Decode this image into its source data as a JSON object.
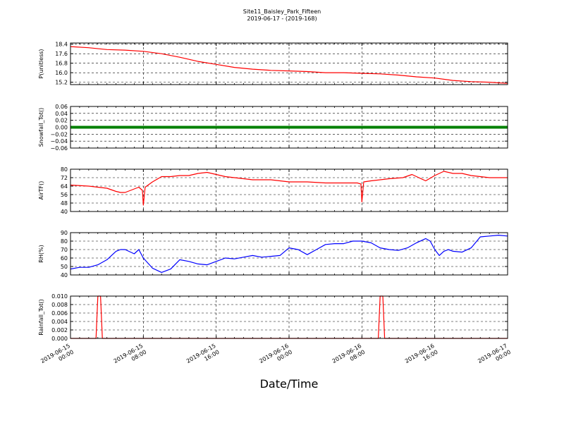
{
  "figure": {
    "title_line1": "Site11_Baisley_Park_Fifteen",
    "title_line2": "2019-06-17 - (2019-168)",
    "xlabel": "Date/Time"
  },
  "chart_data": [
    {
      "type": "line",
      "ylabel": "P(unitless)",
      "ylim": [
        15.0,
        18.5
      ],
      "yticks": [
        "15.2",
        "16.0",
        "16.8",
        "17.6",
        "18.4"
      ],
      "ytick_values": [
        15.2,
        16.0,
        16.8,
        17.6,
        18.4
      ],
      "color": "#ff0000",
      "grid": true,
      "x_hours": [
        0,
        2,
        4,
        6,
        8,
        10,
        12,
        14,
        16,
        18,
        20,
        22,
        24,
        26,
        28,
        30,
        32,
        34,
        36,
        38,
        40,
        42,
        44,
        46,
        48
      ],
      "values": [
        18.2,
        18.1,
        17.95,
        17.9,
        17.8,
        17.6,
        17.3,
        16.95,
        16.7,
        16.45,
        16.3,
        16.2,
        16.15,
        16.1,
        16.0,
        16.0,
        15.95,
        15.9,
        15.8,
        15.65,
        15.55,
        15.35,
        15.25,
        15.2,
        15.1
      ]
    },
    {
      "type": "line",
      "ylabel": "Snowfall_Tot()",
      "ylim": [
        -0.06,
        0.06
      ],
      "yticks": [
        "−0.06",
        "−0.04",
        "−0.02",
        "0.00",
        "0.02",
        "0.04",
        "0.06"
      ],
      "ytick_values": [
        -0.06,
        -0.04,
        -0.02,
        0.0,
        0.02,
        0.04,
        0.06
      ],
      "color": "#008000",
      "grid": true,
      "x_hours": [
        0,
        48
      ],
      "values": [
        0.0,
        0.0
      ]
    },
    {
      "type": "line",
      "ylabel": "AirTF()",
      "ylim": [
        40,
        80
      ],
      "yticks": [
        "40",
        "48",
        "56",
        "64",
        "72",
        "80"
      ],
      "ytick_values": [
        40,
        48,
        56,
        64,
        72,
        80
      ],
      "color": "#ff0000",
      "grid": true,
      "x_hours": [
        0,
        2,
        4,
        5,
        5.5,
        6,
        7.5,
        7.9,
        8.0,
        8.2,
        9,
        10,
        11,
        12,
        13,
        14,
        15,
        16,
        17,
        18,
        20,
        22,
        24,
        26,
        28,
        30,
        31.5,
        31.9,
        32.0,
        32.2,
        33,
        35,
        36.5,
        37.5,
        38,
        39,
        40,
        41,
        42,
        43,
        44,
        46,
        48
      ],
      "values": [
        65,
        64,
        62,
        59,
        58,
        58,
        63,
        60,
        46,
        63,
        68,
        73,
        73,
        74,
        74,
        76,
        77,
        75,
        73,
        72,
        70,
        70,
        68,
        68,
        67,
        67,
        67,
        66,
        49,
        68,
        69,
        71,
        72,
        75,
        73,
        69,
        74,
        78,
        76,
        76,
        74,
        72,
        72
      ]
    },
    {
      "type": "line",
      "ylabel": "RH(%)",
      "ylim": [
        40,
        90
      ],
      "yticks": [
        "40",
        "50",
        "60",
        "70",
        "80",
        "90"
      ],
      "ytick_values": [
        40,
        50,
        60,
        70,
        80,
        90
      ],
      "color": "#0000ff",
      "grid": true,
      "x_hours": [
        0,
        1,
        2,
        3,
        4,
        5,
        5.5,
        6,
        7,
        7.5,
        8,
        9,
        10,
        11,
        12,
        13,
        14,
        15,
        16,
        17,
        18,
        19,
        20,
        21,
        22,
        23,
        24,
        25,
        26,
        27,
        28,
        29,
        30,
        31,
        32,
        33,
        34,
        35,
        36,
        37,
        38,
        39,
        39.5,
        40,
        40.5,
        41,
        41.5,
        42,
        43,
        44,
        45,
        46,
        47,
        48
      ],
      "values": [
        47,
        49,
        49,
        52,
        58,
        68,
        70,
        70,
        65,
        70,
        60,
        48,
        43,
        47,
        58,
        56,
        53,
        52,
        56,
        60,
        59,
        61,
        63,
        61,
        62,
        63,
        72,
        70,
        64,
        70,
        76,
        77,
        77,
        80,
        80,
        78,
        72,
        70,
        69,
        72,
        78,
        83,
        80,
        70,
        63,
        68,
        70,
        68,
        67,
        72,
        85,
        86,
        87,
        86
      ]
    },
    {
      "type": "line",
      "ylabel": "Rainfall_Tot()",
      "ylim": [
        0,
        0.01
      ],
      "yticks": [
        "0.000",
        "0.002",
        "0.004",
        "0.006",
        "0.008",
        "0.010"
      ],
      "ytick_values": [
        0,
        0.002,
        0.004,
        0.006,
        0.008,
        0.01
      ],
      "color": "#ff0000",
      "grid": true,
      "x_hours": [
        0,
        2.8,
        3.0,
        3.3,
        3.5,
        33.8,
        34.0,
        34.3,
        34.5,
        48
      ],
      "values": [
        0,
        0,
        0.01,
        0.01,
        0,
        0,
        0.01,
        0.01,
        0,
        0
      ]
    }
  ],
  "xaxis": {
    "range_hours": [
      0,
      48
    ],
    "ticks": [
      {
        "hour": 0,
        "line1": "2019-06-15",
        "line2": "00:00"
      },
      {
        "hour": 8,
        "line1": "2019-06-15",
        "line2": "08:00"
      },
      {
        "hour": 16,
        "line1": "2019-06-15",
        "line2": "16:00"
      },
      {
        "hour": 24,
        "line1": "2019-06-16",
        "line2": "00:00"
      },
      {
        "hour": 32,
        "line1": "2019-06-16",
        "line2": "08:00"
      },
      {
        "hour": 40,
        "line1": "2019-06-16",
        "line2": "16:00"
      },
      {
        "hour": 48,
        "line1": "2019-06-17",
        "line2": "00:00"
      }
    ]
  }
}
